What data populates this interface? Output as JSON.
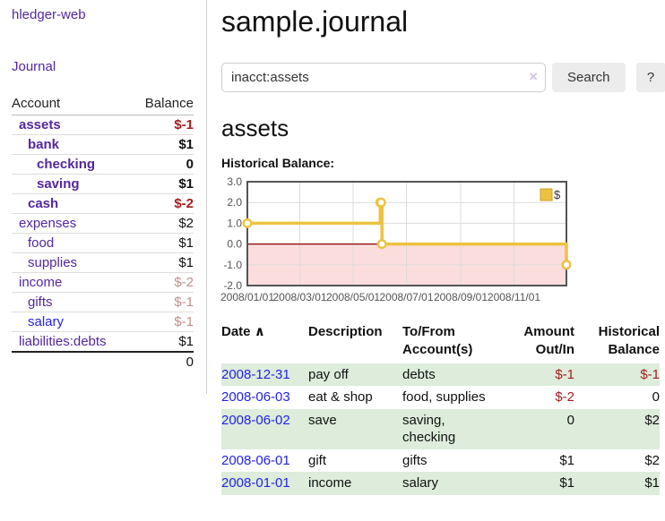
{
  "app": {
    "title": "hledger-web"
  },
  "colors": {
    "link_purple": "#53279d",
    "link_blue": "#2323e0",
    "negative_strong": "#a51d1d",
    "negative_muted": "#c68d8d",
    "row_stripe_green": "#ddecdb",
    "series_gold": "#edc240",
    "negative_fill_pink": "#fbdddd",
    "zero_line_red": "#900000",
    "grid_line": "#dcdcdc",
    "plot_border": "#545454",
    "tick_label": "#545454"
  },
  "sidebar": {
    "journal_link": "Journal",
    "table": {
      "account_header": "Account",
      "balance_header": "Balance",
      "rows": [
        {
          "account": "assets",
          "balance": "$-1",
          "level": 0,
          "emph": true,
          "tone": "neg"
        },
        {
          "account": "bank",
          "balance": "$1",
          "level": 1,
          "emph": true,
          "tone": "pos"
        },
        {
          "account": "checking",
          "balance": "0",
          "level": 2,
          "emph": true,
          "tone": "pos"
        },
        {
          "account": "saving",
          "balance": "$1",
          "level": 2,
          "emph": true,
          "tone": "pos"
        },
        {
          "account": "cash",
          "balance": "$-2",
          "level": 1,
          "emph": true,
          "tone": "neg"
        },
        {
          "account": "expenses",
          "balance": "$2",
          "level": 0,
          "emph": false,
          "tone": "pos"
        },
        {
          "account": "food",
          "balance": "$1",
          "level": 1,
          "emph": false,
          "tone": "pos"
        },
        {
          "account": "supplies",
          "balance": "$1",
          "level": 1,
          "emph": false,
          "tone": "pos"
        },
        {
          "account": "income",
          "balance": "$-2",
          "level": 0,
          "emph": false,
          "tone": "neg-muted"
        },
        {
          "account": "gifts",
          "balance": "$-1",
          "level": 1,
          "emph": false,
          "tone": "neg-muted"
        },
        {
          "account": "salary",
          "balance": "$-1",
          "level": 1,
          "emph": false,
          "tone": "neg-muted",
          "link_color": "blue"
        },
        {
          "account": "liabilities:debts",
          "balance": "$1",
          "level": 0,
          "emph": false,
          "tone": "pos"
        }
      ],
      "total": "0"
    }
  },
  "header": {
    "title": "sample.journal"
  },
  "search": {
    "value": "inacct:assets",
    "clear_icon": "×",
    "button_label": "Search",
    "help_label": "?"
  },
  "account_page": {
    "heading": "assets",
    "chart_label": "Historical Balance:"
  },
  "chart_data": {
    "type": "line",
    "step": true,
    "title": "Historical Balance",
    "x": [
      "2008-01-01",
      "2008-06-01",
      "2008-06-02",
      "2008-06-03",
      "2008-12-31"
    ],
    "series": [
      {
        "name": "$",
        "color": "#edc240",
        "values": [
          1,
          2,
          2,
          0,
          -1
        ]
      }
    ],
    "xlim": [
      "2008-01-01",
      "2008-12-31"
    ],
    "ylim": [
      -2,
      3
    ],
    "x_tick_dates": [
      "2008-01-01",
      "2008-03-01",
      "2008-05-01",
      "2008-07-01",
      "2008-09-01",
      "2008-11-01"
    ],
    "x_tick_labels": [
      "2008/01/01",
      "2008/03/01",
      "2008/05/01",
      "2008/07/01",
      "2008/09/01",
      "2008/11/01"
    ],
    "y_tick_labels": [
      "3.0",
      "2.0",
      "1.0",
      "0.0",
      "-1.0",
      "-2.0"
    ],
    "grid": true,
    "legend": {
      "label": "$",
      "position": "top-right"
    },
    "negative_region_fill": "#fbdddd",
    "zero_line_color": "#900000"
  },
  "register": {
    "sort_icon": "∧",
    "columns": [
      {
        "label": "Date"
      },
      {
        "label": "Description"
      },
      {
        "label": "To/From Account(s)"
      },
      {
        "label": "Amount Out/In"
      },
      {
        "label": "Historical Balance"
      }
    ],
    "rows": [
      {
        "date": "2008-12-31",
        "description": "pay off",
        "accounts": "debts",
        "amount": "$-1",
        "amount_tone": "neg",
        "balance": "$-1",
        "balance_tone": "neg"
      },
      {
        "date": "2008-06-03",
        "description": "eat & shop",
        "accounts": "food, supplies",
        "amount": "$-2",
        "amount_tone": "neg",
        "balance": "0",
        "balance_tone": "pos"
      },
      {
        "date": "2008-06-02",
        "description": "save",
        "accounts": "saving, checking",
        "amount": "0",
        "amount_tone": "pos",
        "balance": "$2",
        "balance_tone": "pos"
      },
      {
        "date": "2008-06-01",
        "description": "gift",
        "accounts": "gifts",
        "amount": "$1",
        "amount_tone": "pos",
        "balance": "$2",
        "balance_tone": "pos"
      },
      {
        "date": "2008-01-01",
        "description": "income",
        "accounts": "salary",
        "amount": "$1",
        "amount_tone": "pos",
        "balance": "$1",
        "balance_tone": "pos"
      }
    ]
  }
}
